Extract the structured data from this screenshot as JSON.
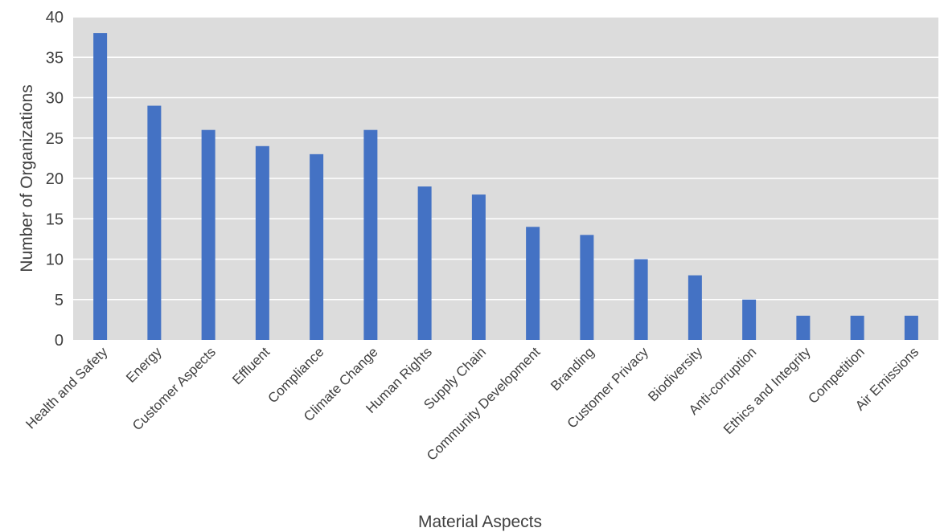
{
  "chart_data": {
    "type": "bar",
    "title": "",
    "xlabel": "Material Aspects",
    "ylabel": "Number of Organizations",
    "ylim": [
      0,
      40
    ],
    "yticks": [
      0,
      5,
      10,
      15,
      20,
      25,
      30,
      35,
      40
    ],
    "grid": true,
    "legend": "none",
    "categories": [
      "Health and Safety",
      "Energy",
      "Customer Aspects",
      "Effluent",
      "Compliance",
      "Climate Change",
      "Human Rights",
      "Supply Chain",
      "Community Development",
      "Branding",
      "Customer Privacy",
      "Biodiversity",
      "Anti-corruption",
      "Ethics and Integrity",
      "Competition",
      "Air Emissions"
    ],
    "values": [
      38,
      29,
      26,
      24,
      23,
      26,
      19,
      18,
      14,
      13,
      10,
      8,
      5,
      3,
      3,
      3
    ],
    "colors": {
      "bar": "#4472c4",
      "plot_background": "#dcdcdc",
      "gridline": "#ffffff",
      "text": "#404040"
    }
  }
}
